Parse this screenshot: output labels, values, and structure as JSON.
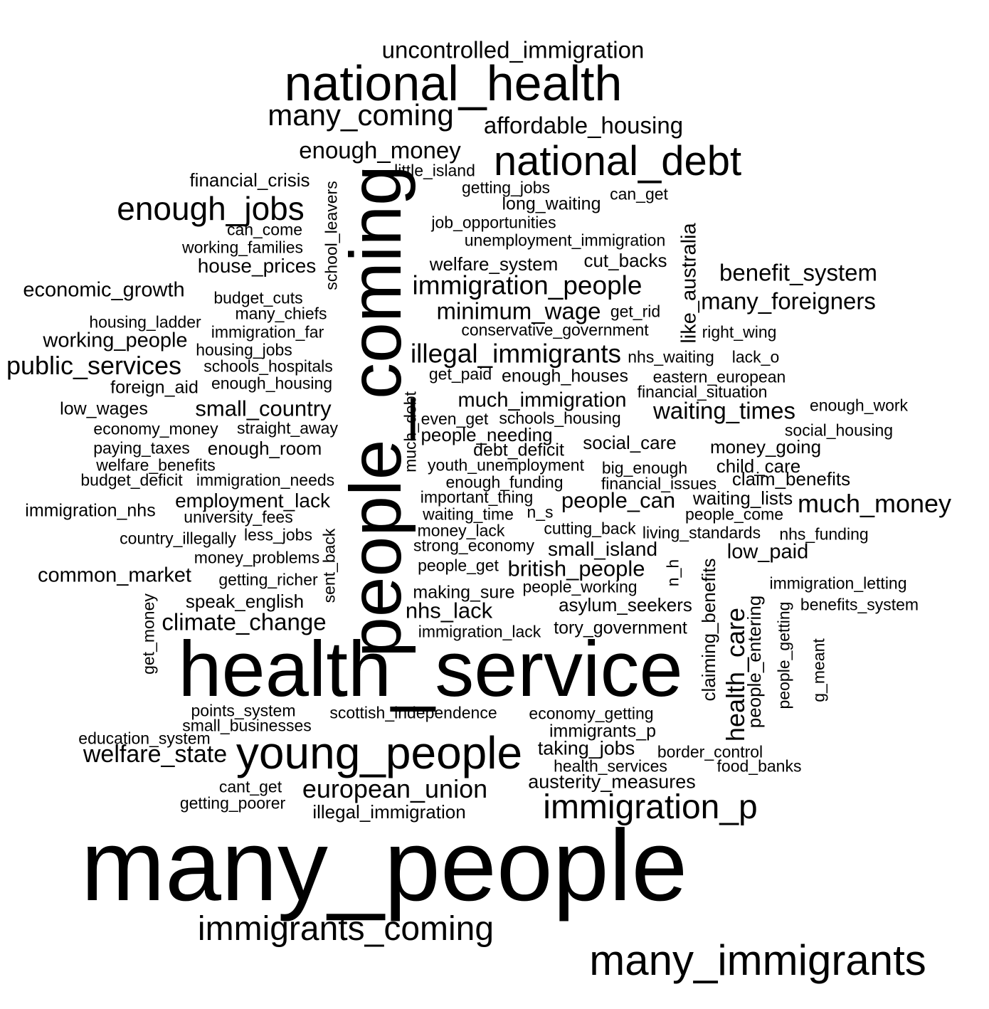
{
  "word_cloud": {
    "text_color": "#000000",
    "background": "#ffffff",
    "words": [
      {
        "text": "many_people"
      },
      {
        "text": "health_service"
      },
      {
        "text": "people_coming"
      },
      {
        "text": "national_health"
      },
      {
        "text": "young_people"
      },
      {
        "text": "national_debt"
      },
      {
        "text": "many_immigrants"
      },
      {
        "text": "immigrants_coming"
      },
      {
        "text": "immigration_p"
      },
      {
        "text": "many_coming"
      },
      {
        "text": "enough_jobs"
      },
      {
        "text": "uncontrolled_immigration"
      },
      {
        "text": "affordable_housing"
      },
      {
        "text": "enough_money"
      },
      {
        "text": "little_island"
      },
      {
        "text": "financial_crisis"
      },
      {
        "text": "getting_jobs"
      },
      {
        "text": "can_get"
      },
      {
        "text": "long_waiting"
      },
      {
        "text": "can_come"
      },
      {
        "text": "job_opportunities"
      },
      {
        "text": "unemployment_immigration"
      },
      {
        "text": "working_families"
      },
      {
        "text": "house_prices"
      },
      {
        "text": "welfare_system"
      },
      {
        "text": "cut_backs"
      },
      {
        "text": "benefit_system"
      },
      {
        "text": "immigration_people"
      },
      {
        "text": "economic_growth"
      },
      {
        "text": "budget_cuts"
      },
      {
        "text": "many_foreigners"
      },
      {
        "text": "minimum_wage"
      },
      {
        "text": "get_rid"
      },
      {
        "text": "many_chiefs"
      },
      {
        "text": "housing_ladder"
      },
      {
        "text": "conservative_government"
      },
      {
        "text": "immigration_far"
      },
      {
        "text": "right_wing"
      },
      {
        "text": "working_people"
      },
      {
        "text": "illegal_immigrants"
      },
      {
        "text": "nhs_waiting"
      },
      {
        "text": "lack_o"
      },
      {
        "text": "housing_jobs"
      },
      {
        "text": "public_services"
      },
      {
        "text": "schools_hospitals"
      },
      {
        "text": "get_paid"
      },
      {
        "text": "enough_houses"
      },
      {
        "text": "eastern_european"
      },
      {
        "text": "foreign_aid"
      },
      {
        "text": "enough_housing"
      },
      {
        "text": "financial_situation"
      },
      {
        "text": "much_immigration"
      },
      {
        "text": "low_wages"
      },
      {
        "text": "small_country"
      },
      {
        "text": "waiting_times"
      },
      {
        "text": "enough_work"
      },
      {
        "text": "even_get"
      },
      {
        "text": "schools_housing"
      },
      {
        "text": "economy_money"
      },
      {
        "text": "straight_away"
      },
      {
        "text": "social_housing"
      },
      {
        "text": "people_needing"
      },
      {
        "text": "social_care"
      },
      {
        "text": "paying_taxes"
      },
      {
        "text": "enough_room"
      },
      {
        "text": "debt_deficit"
      },
      {
        "text": "money_going"
      },
      {
        "text": "welfare_benefits"
      },
      {
        "text": "youth_unemployment"
      },
      {
        "text": "big_enough"
      },
      {
        "text": "child_care"
      },
      {
        "text": "budget_deficit"
      },
      {
        "text": "immigration_needs"
      },
      {
        "text": "enough_funding"
      },
      {
        "text": "financial_issues"
      },
      {
        "text": "claim_benefits"
      },
      {
        "text": "employment_lack"
      },
      {
        "text": "important_thing"
      },
      {
        "text": "people_can"
      },
      {
        "text": "waiting_lists"
      },
      {
        "text": "immigration_nhs"
      },
      {
        "text": "much_money"
      },
      {
        "text": "university_fees"
      },
      {
        "text": "waiting_time"
      },
      {
        "text": "n_s"
      },
      {
        "text": "people_come"
      },
      {
        "text": "money_lack"
      },
      {
        "text": "cutting_back"
      },
      {
        "text": "country_illegally"
      },
      {
        "text": "less_jobs"
      },
      {
        "text": "living_standards"
      },
      {
        "text": "nhs_funding"
      },
      {
        "text": "strong_economy"
      },
      {
        "text": "small_island"
      },
      {
        "text": "low_paid"
      },
      {
        "text": "money_problems"
      },
      {
        "text": "people_get"
      },
      {
        "text": "british_people"
      },
      {
        "text": "common_market"
      },
      {
        "text": "getting_richer"
      },
      {
        "text": "immigration_letting"
      },
      {
        "text": "people_working"
      },
      {
        "text": "making_sure"
      },
      {
        "text": "speak_english"
      },
      {
        "text": "asylum_seekers"
      },
      {
        "text": "benefits_system"
      },
      {
        "text": "nhs_lack"
      },
      {
        "text": "climate_change"
      },
      {
        "text": "tory_government"
      },
      {
        "text": "immigration_lack"
      },
      {
        "text": "points_system"
      },
      {
        "text": "scottish_independence"
      },
      {
        "text": "economy_getting"
      },
      {
        "text": "small_businesses"
      },
      {
        "text": "immigrants_p"
      },
      {
        "text": "education_system"
      },
      {
        "text": "taking_jobs"
      },
      {
        "text": "welfare_state"
      },
      {
        "text": "border_control"
      },
      {
        "text": "health_services"
      },
      {
        "text": "food_banks"
      },
      {
        "text": "austerity_measures"
      },
      {
        "text": "cant_get"
      },
      {
        "text": "european_union"
      },
      {
        "text": "getting_poorer"
      },
      {
        "text": "illegal_immigration"
      },
      {
        "text": "school_leavers"
      },
      {
        "text": "like_australia"
      },
      {
        "text": "much_debt"
      },
      {
        "text": "sent_back"
      },
      {
        "text": "get_money"
      },
      {
        "text": "n_h"
      },
      {
        "text": "claiming_benefits"
      },
      {
        "text": "health_care"
      },
      {
        "text": "people_entering"
      },
      {
        "text": "people_getting"
      },
      {
        "text": "g_meant"
      }
    ]
  }
}
